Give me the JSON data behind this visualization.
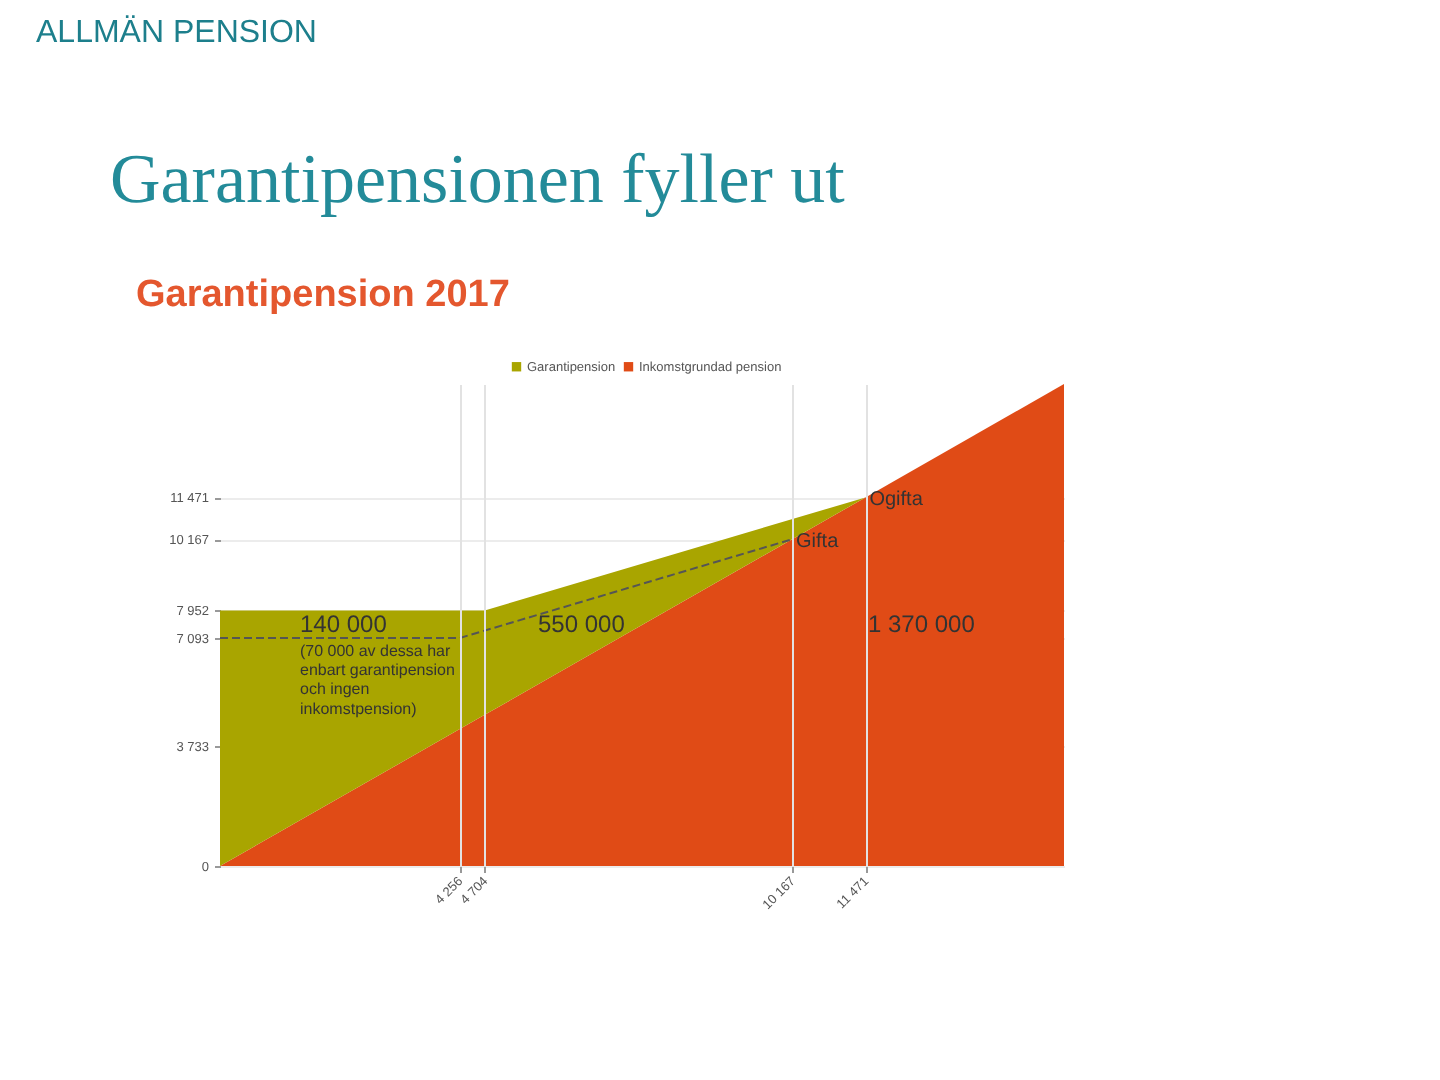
{
  "chart_data": {
    "type": "area",
    "title": "Garantipensionen fyller ut",
    "subtitle": "Garantipension 2017",
    "stacked": true,
    "series": [
      {
        "name": "Inkomstgrundad pension",
        "color": "#e04b16",
        "x": [
          0,
          4704,
          11471,
          15000
        ],
        "values": [
          0,
          4704,
          11471,
          15000
        ]
      },
      {
        "name": "Garantipension",
        "color": "#a9a500",
        "x": [
          0,
          4704,
          11471
        ],
        "values": [
          7952,
          3248,
          0
        ]
      },
      {
        "type": "line",
        "color": "#555555",
        "line_style": "dashed",
        "x": [
          0,
          4256,
          10167
        ],
        "values": [
          7093,
          7093,
          10167
        ]
      }
    ],
    "xlim": [
      0,
      15000
    ],
    "ylim": [
      0,
      15000
    ],
    "xticks": [
      {
        "value": 4256,
        "label": "4 256"
      },
      {
        "value": 4704,
        "label": "4 704"
      },
      {
        "value": 10167,
        "label": "10 167"
      },
      {
        "value": 11471,
        "label": "11 471"
      }
    ],
    "yticks": [
      0,
      {
        "value": 3733,
        "label": "3 733"
      },
      {
        "value": 7093,
        "label": "7 093"
      },
      {
        "value": 7952,
        "label": "7 952"
      },
      {
        "value": 10167,
        "label": "10 167"
      },
      {
        "value": 11471,
        "label": "11 471"
      }
    ],
    "grid": true,
    "legend": "top",
    "annotations": [
      "ALLMÄN PENSION",
      "140 000",
      "(70 000 av dessa har enbart garantipension och ingen inkomstpension)",
      "550 000",
      "1 370 000",
      {
        "text": "Gifta",
        "x": 10167,
        "y": 10167
      },
      {
        "text": "Ogifta",
        "x": 11471,
        "y": 11471
      }
    ]
  }
}
